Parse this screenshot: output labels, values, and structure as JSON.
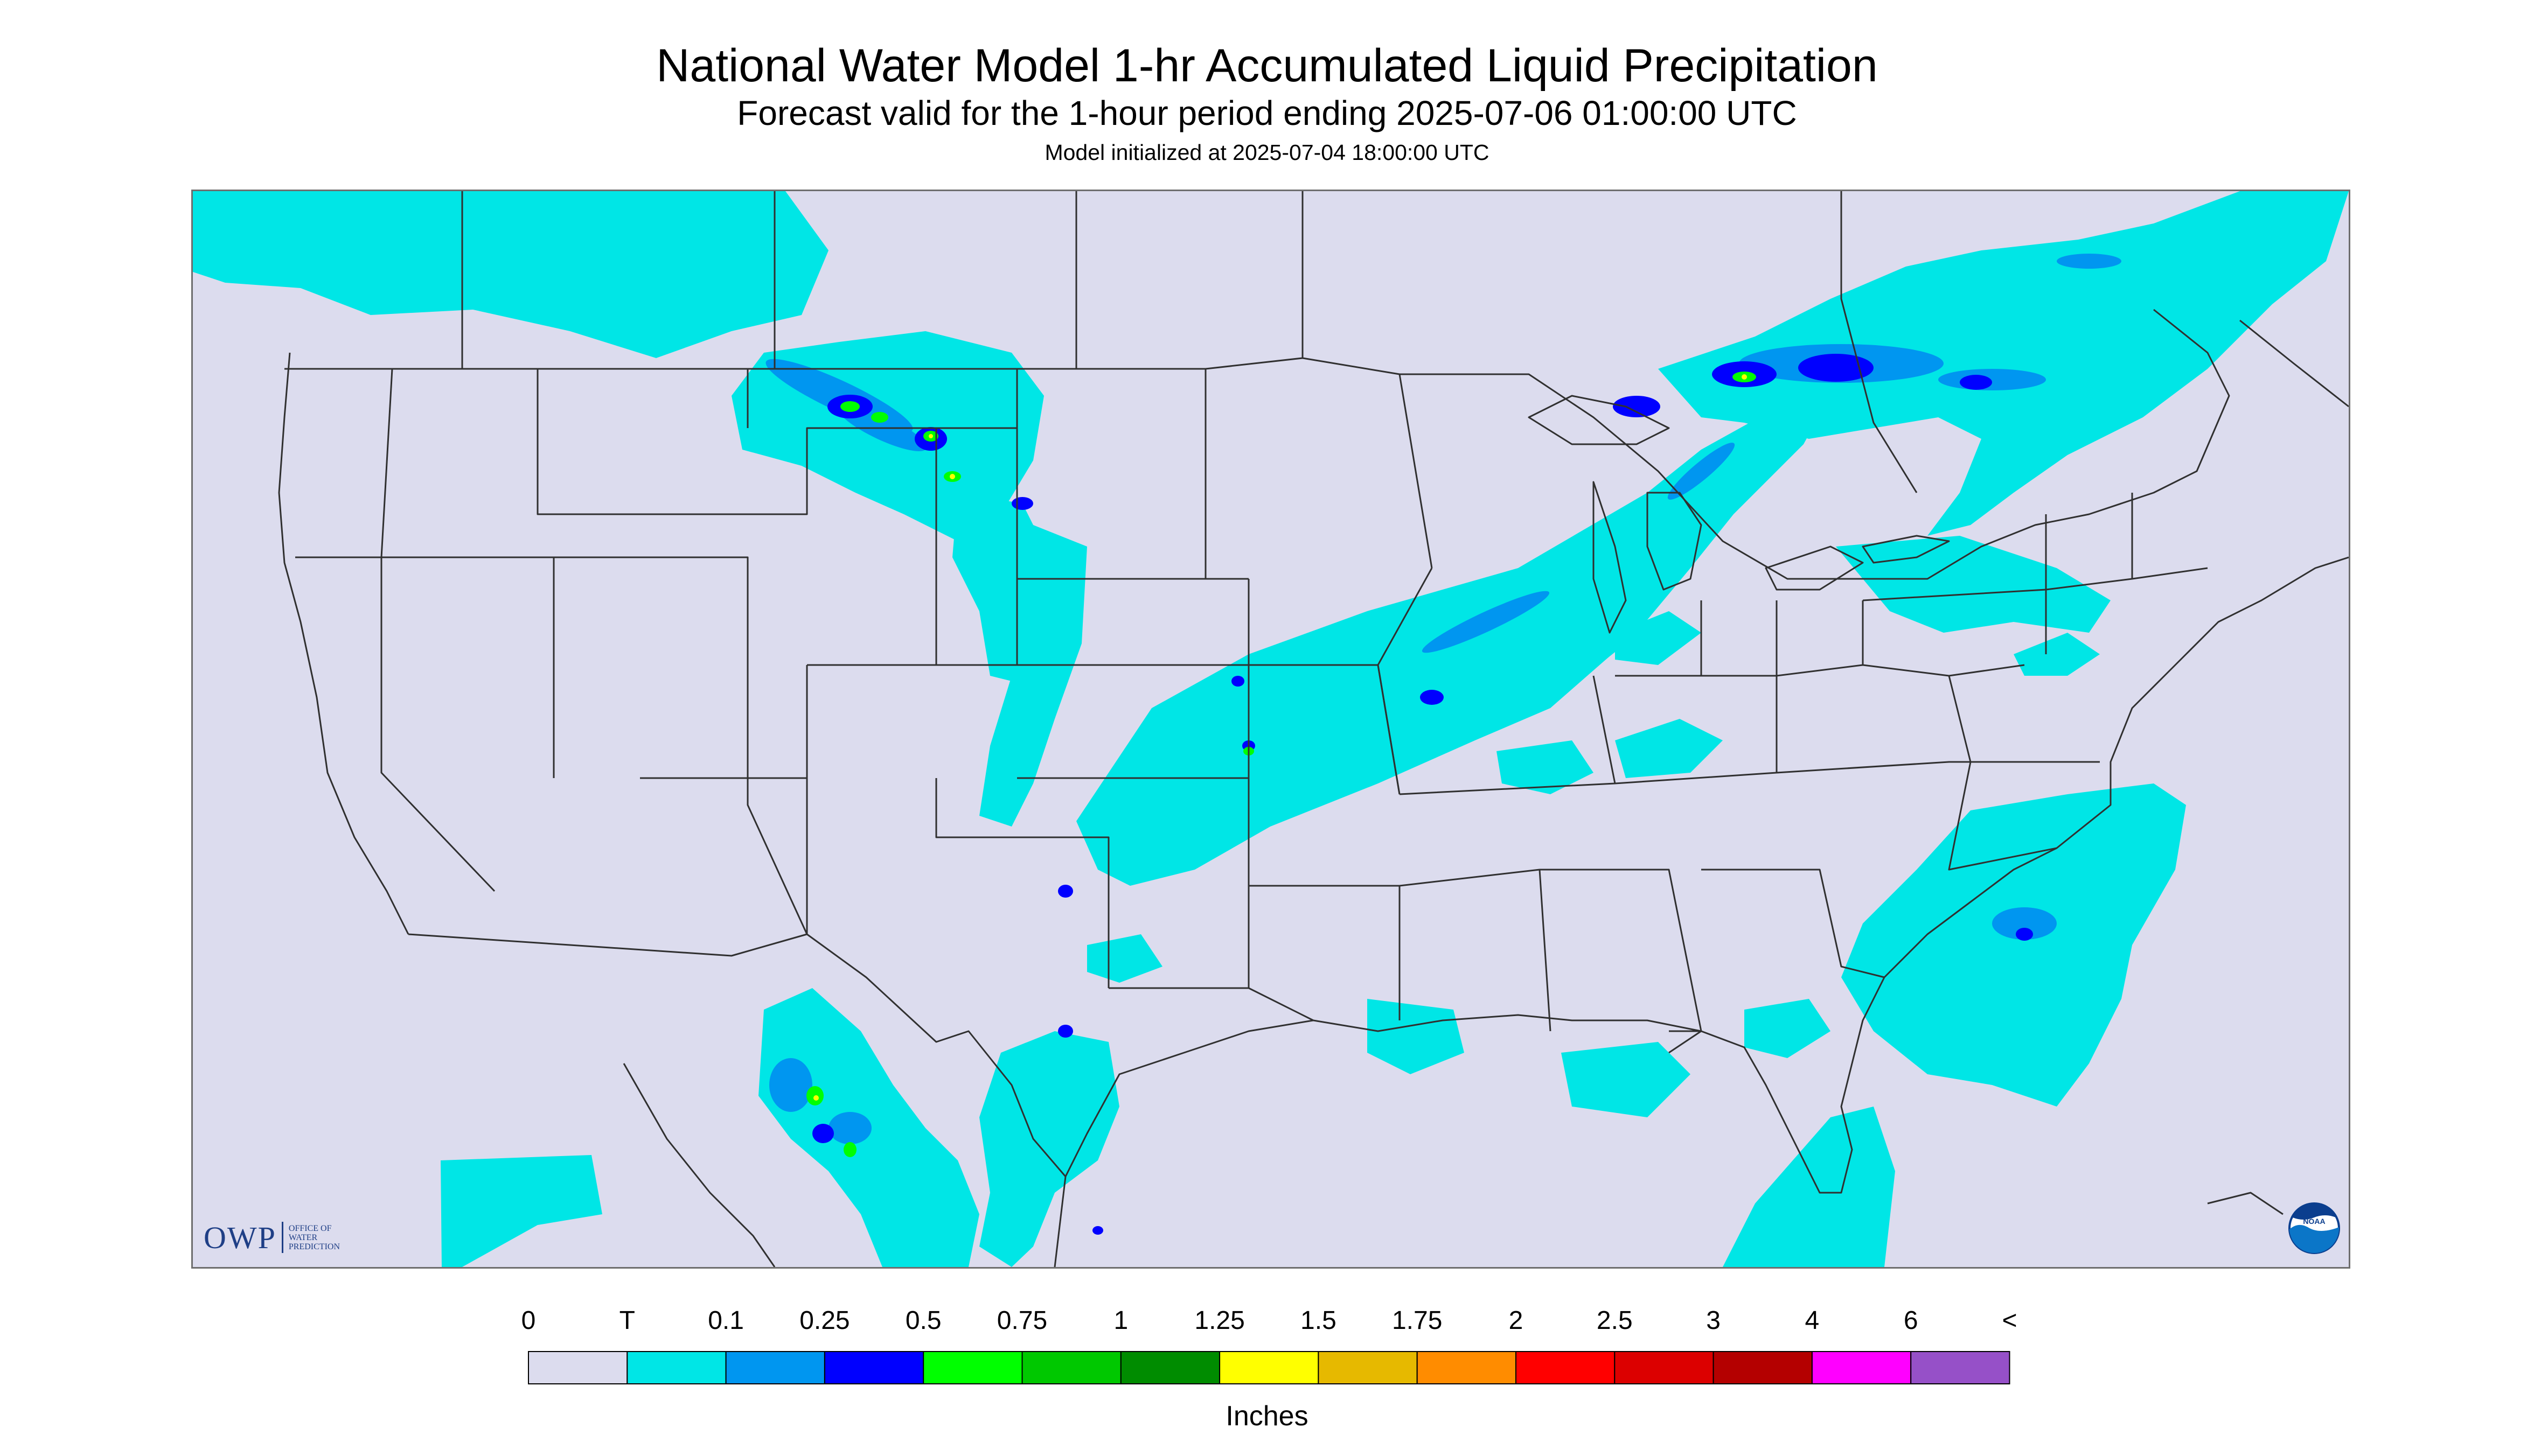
{
  "header": {
    "title": "National Water Model 1-hr Accumulated Liquid Precipitation",
    "subtitle": "Forecast valid for the 1-hour period ending 2025-07-06 01:00:00 UTC",
    "init_note": "Model initialized at 2025-07-04 18:00:00 UTC"
  },
  "logos": {
    "owp_main": "OWP",
    "owp_sub": [
      "OFFICE OF",
      "WATER",
      "PREDICTION"
    ],
    "noaa_text": "NOAA"
  },
  "colors": {
    "out_of_domain": "#dcdcee",
    "land_no_precip": "#dcdcee",
    "frame": "#6e6e6e",
    "boundary": "#303030"
  },
  "legend": {
    "labels": [
      "0",
      "T",
      "0.1",
      "0.25",
      "0.5",
      "0.75",
      "1",
      "1.25",
      "1.5",
      "1.75",
      "2",
      "2.5",
      "3",
      "4",
      "6",
      "<"
    ],
    "colors": [
      "#dcdcee",
      "#00e6e6",
      "#0096f0",
      "#0000ff",
      "#00ff00",
      "#00c800",
      "#008c00",
      "#ffff00",
      "#e6b900",
      "#ff8c00",
      "#ff0000",
      "#dc0000",
      "#b40000",
      "#ff00ff",
      "#9650c8"
    ],
    "units": "Inches"
  }
}
